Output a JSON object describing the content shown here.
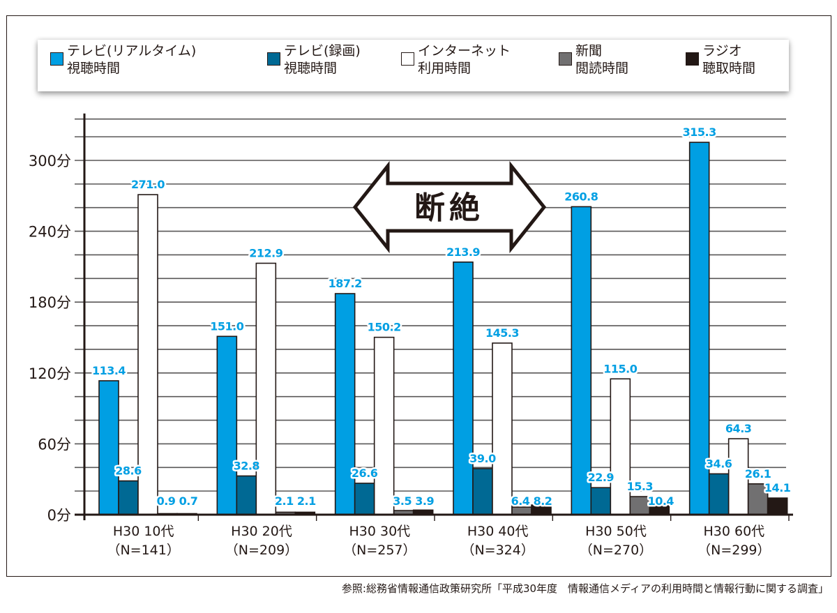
{
  "chart_data": {
    "type": "bar",
    "title": "",
    "xlabel": "",
    "ylabel": "",
    "ylim": [
      0,
      335
    ],
    "yticks": [
      0,
      60,
      120,
      180,
      240,
      300
    ],
    "ytick_labels": [
      "0分",
      "60分",
      "120分",
      "180分",
      "240分",
      "300分"
    ],
    "minor_grid_step": 20,
    "grid": true,
    "legend_position": "top",
    "categories": [
      {
        "line1": "H30 10代",
        "line2": "（N=141）"
      },
      {
        "line1": "H30 20代",
        "line2": "（N=209）"
      },
      {
        "line1": "H30 30代",
        "line2": "（N=257）"
      },
      {
        "line1": "H30 40代",
        "line2": "（N=324）"
      },
      {
        "line1": "H30 50代",
        "line2": "（N=270）"
      },
      {
        "line1": "H30 60代",
        "line2": "（N=299）"
      }
    ],
    "series": [
      {
        "name_line1": "テレビ(リアルタイム)",
        "name_line2": "視聴時間",
        "color": "#009fe3",
        "values": [
          113.4,
          151.0,
          187.2,
          213.9,
          260.8,
          315.3
        ],
        "labels": [
          "113.4",
          "151.0",
          "187.2",
          "213.9",
          "260.8",
          "315.3"
        ]
      },
      {
        "name_line1": "テレビ(録画)",
        "name_line2": "視聴時間",
        "color": "#006994",
        "values": [
          28.6,
          32.8,
          26.6,
          39.0,
          22.9,
          34.6
        ],
        "labels": [
          "28.6",
          "32.8",
          "26.6",
          "39.0",
          "22.9",
          "34.6"
        ]
      },
      {
        "name_line1": "インターネット",
        "name_line2": "利用時間",
        "color": "#ffffff",
        "values": [
          271.0,
          212.9,
          150.2,
          145.3,
          115.0,
          64.3
        ],
        "labels": [
          "271.0",
          "212.9",
          "150.2",
          "145.3",
          "115.0",
          "64.3"
        ]
      },
      {
        "name_line1": "新聞",
        "name_line2": "閲読時間",
        "color": "#717071",
        "values": [
          0.9,
          2.1,
          3.5,
          6.4,
          15.3,
          26.1
        ],
        "labels": [
          "0.9",
          "2.1",
          "3.5",
          "6.4",
          "15.3",
          "26.1"
        ]
      },
      {
        "name_line1": "ラジオ",
        "name_line2": "聴取時間",
        "color": "#231815",
        "values": [
          0.7,
          2.1,
          3.9,
          8.2,
          10.4,
          14.1
        ],
        "labels": [
          "0.7",
          "2.1",
          "3.9",
          "8.2",
          "10.4",
          "14.1"
        ]
      }
    ],
    "annotation": {
      "text": "断絶",
      "shape": "double-headed-arrow"
    },
    "label_color": "#009fe3",
    "axis_color": "#231815",
    "grid_color": "#595757"
  },
  "source_note": "参照:総務省情報通信政策研究所「平成30年度　情報通信メディアの利用時間と情報行動に関する調査」"
}
